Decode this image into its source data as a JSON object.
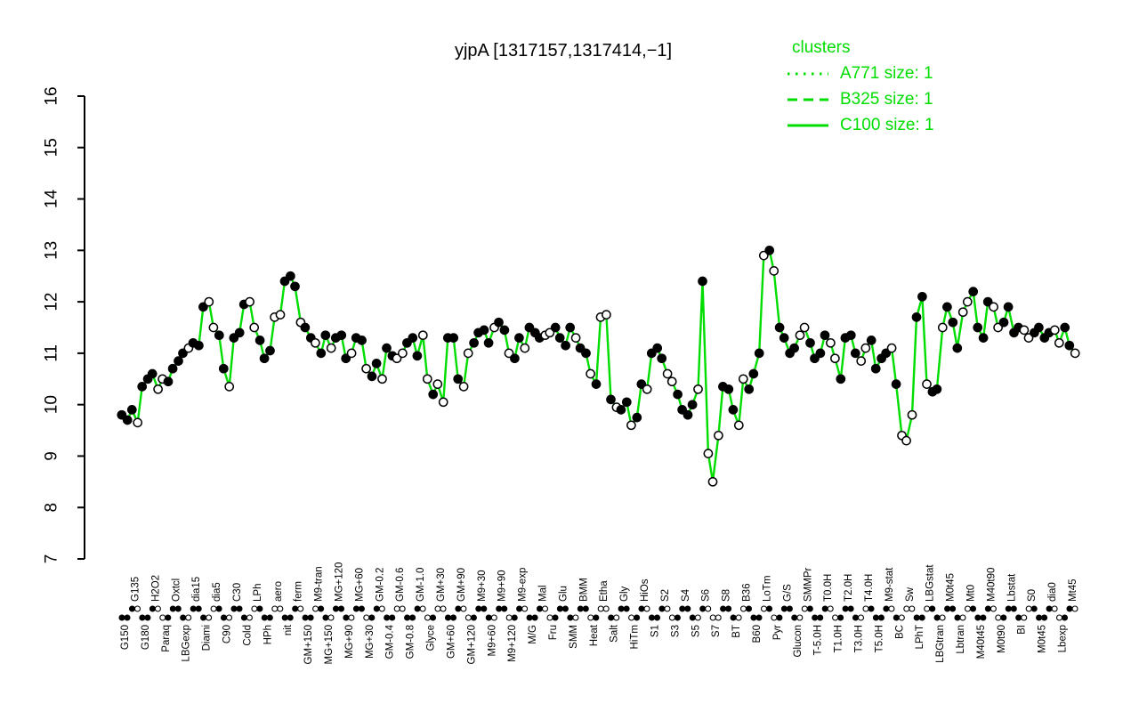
{
  "title": "yjpA [1317157,1317414,−1]",
  "legend": {
    "title": "clusters",
    "items": [
      {
        "label": "A771 size: 1",
        "line_style": "dotted"
      },
      {
        "label": "B325 size: 1",
        "line_style": "dashed"
      },
      {
        "label": "C100 size: 1",
        "line_style": "solid"
      }
    ]
  },
  "colors": {
    "accent": "#00dd00",
    "line": "#00dd00",
    "point_filled": "#000000",
    "point_open": "#ffffff",
    "axis": "#000000"
  },
  "chart_data": {
    "type": "line",
    "title": "yjpA [1317157,1317414,−1]",
    "xlabel": "",
    "ylabel": "",
    "ylim": [
      7,
      16
    ],
    "yticks": [
      7,
      8,
      9,
      10,
      11,
      12,
      13,
      14,
      15,
      16
    ],
    "grid": false,
    "legend_position": "top-right",
    "series_note": "two replicate points per condition; marker string: f=filled, o=open",
    "conditions": [
      [
        "G150",
        9.8,
        9.7,
        "ff"
      ],
      [
        "G135",
        9.9,
        9.65,
        "fo"
      ],
      [
        "G180",
        10.35,
        10.5,
        "ff"
      ],
      [
        "H2O2",
        10.6,
        10.3,
        "fo"
      ],
      [
        "Paraq",
        10.5,
        10.45,
        "of"
      ],
      [
        "Oxtcl",
        10.7,
        10.85,
        "ff"
      ],
      [
        "LBGexp",
        11.0,
        11.1,
        "fo"
      ],
      [
        "dia15",
        11.2,
        11.15,
        "ff"
      ],
      [
        "Diami",
        11.9,
        12.0,
        "fo"
      ],
      [
        "dia5",
        11.5,
        11.35,
        "of"
      ],
      [
        "C90",
        10.7,
        10.35,
        "fo"
      ],
      [
        "C30",
        11.3,
        11.4,
        "ff"
      ],
      [
        "Cold",
        11.95,
        12.0,
        "fo"
      ],
      [
        "LPh",
        11.5,
        11.25,
        "of"
      ],
      [
        "HPh",
        10.9,
        11.05,
        "ff"
      ],
      [
        "aero",
        11.7,
        11.75,
        "oo"
      ],
      [
        "nit",
        12.4,
        12.5,
        "ff"
      ],
      [
        "ferm",
        12.3,
        11.6,
        "fo"
      ],
      [
        "GM+150",
        11.5,
        11.3,
        "ff"
      ],
      [
        "M9-tran",
        11.2,
        11.0,
        "of"
      ],
      [
        "MG+150",
        11.35,
        11.1,
        "fo"
      ],
      [
        "MG+120",
        11.3,
        11.35,
        "ff"
      ],
      [
        "MG+90",
        10.9,
        11.0,
        "fo"
      ],
      [
        "MG+60",
        11.3,
        11.25,
        "ff"
      ],
      [
        "MG+30",
        10.7,
        10.55,
        "of"
      ],
      [
        "GM-0.2",
        10.8,
        10.5,
        "fo"
      ],
      [
        "GM-0.4",
        11.1,
        10.95,
        "ff"
      ],
      [
        "GM-0.6",
        10.9,
        11.0,
        "oo"
      ],
      [
        "GM-0.8",
        11.2,
        11.3,
        "ff"
      ],
      [
        "GM-1.0",
        10.95,
        11.35,
        "fo"
      ],
      [
        "Glyce",
        10.5,
        10.2,
        "of"
      ],
      [
        "GM+30",
        10.4,
        10.05,
        "oo"
      ],
      [
        "GM+60",
        11.3,
        11.3,
        "ff"
      ],
      [
        "GM+90",
        10.5,
        10.35,
        "fo"
      ],
      [
        "GM+120",
        11.0,
        11.2,
        "of"
      ],
      [
        "M9+30",
        11.4,
        11.45,
        "ff"
      ],
      [
        "M9+60",
        11.2,
        11.5,
        "fo"
      ],
      [
        "M9+90",
        11.6,
        11.45,
        "ff"
      ],
      [
        "M9+120",
        11.0,
        10.9,
        "of"
      ],
      [
        "M9-exp",
        11.3,
        11.1,
        "fo"
      ],
      [
        "M/G",
        11.5,
        11.4,
        "ff"
      ],
      [
        "Mal",
        11.3,
        11.35,
        "fo"
      ],
      [
        "Fru",
        11.4,
        11.5,
        "of"
      ],
      [
        "Glu",
        11.3,
        11.15,
        "ff"
      ],
      [
        "SMM",
        11.5,
        11.3,
        "fo"
      ],
      [
        "BMM",
        11.1,
        11.0,
        "ff"
      ],
      [
        "Heat",
        10.6,
        10.4,
        "of"
      ],
      [
        "Etha",
        11.7,
        11.75,
        "oo"
      ],
      [
        "Salt",
        10.1,
        9.95,
        "fo"
      ],
      [
        "Gly",
        9.9,
        10.05,
        "ff"
      ],
      [
        "HiTm",
        9.6,
        9.75,
        "of"
      ],
      [
        "HiOs",
        10.4,
        10.3,
        "fo"
      ],
      [
        "S1",
        11.0,
        11.1,
        "ff"
      ],
      [
        "S2",
        10.9,
        10.6,
        "fo"
      ],
      [
        "S3",
        10.45,
        10.2,
        "of"
      ],
      [
        "S4",
        9.9,
        9.8,
        "ff"
      ],
      [
        "S5",
        10.0,
        10.3,
        "fo"
      ],
      [
        "S6",
        12.4,
        9.05,
        "fo"
      ],
      [
        "S7",
        8.5,
        9.4,
        "oo"
      ],
      [
        "S8",
        10.35,
        10.3,
        "ff"
      ],
      [
        "BT",
        9.9,
        9.6,
        "fo"
      ],
      [
        "B36",
        10.5,
        10.3,
        "of"
      ],
      [
        "B60",
        10.6,
        11.0,
        "ff"
      ],
      [
        "LoTm",
        12.9,
        13.0,
        "of"
      ],
      [
        "Pyr",
        12.6,
        11.5,
        "of"
      ],
      [
        "G/S",
        11.3,
        11.0,
        "ff"
      ],
      [
        "Glucon",
        11.1,
        11.35,
        "fo"
      ],
      [
        "SMMPr",
        11.5,
        11.2,
        "of"
      ],
      [
        "T-5.0H",
        10.9,
        11.0,
        "ff"
      ],
      [
        "T0.0H",
        11.35,
        11.2,
        "fo"
      ],
      [
        "T1.0H",
        10.9,
        10.5,
        "of"
      ],
      [
        "T2.0H",
        11.3,
        11.35,
        "ff"
      ],
      [
        "T3.0H",
        11.0,
        10.85,
        "fo"
      ],
      [
        "T4.0H",
        11.1,
        11.25,
        "of"
      ],
      [
        "T5.0H",
        10.7,
        10.9,
        "ff"
      ],
      [
        "M9-stat",
        11.0,
        11.1,
        "fo"
      ],
      [
        "BC",
        10.4,
        9.4,
        "fo"
      ],
      [
        "Sw",
        9.3,
        9.8,
        "oo"
      ],
      [
        "LPhT",
        11.7,
        12.1,
        "ff"
      ],
      [
        "LBGstat",
        10.4,
        10.25,
        "of"
      ],
      [
        "LBGtran",
        10.3,
        11.5,
        "fo"
      ],
      [
        "M0t45",
        11.9,
        11.6,
        "ff"
      ],
      [
        "Lbtran",
        11.1,
        11.8,
        "fo"
      ],
      [
        "Mt0",
        12.0,
        12.2,
        "of"
      ],
      [
        "M40t45",
        11.5,
        11.3,
        "ff"
      ],
      [
        "M40t90",
        12.0,
        11.9,
        "fo"
      ],
      [
        "M0t90",
        11.5,
        11.6,
        "of"
      ],
      [
        "Lbstat",
        11.9,
        11.4,
        "ff"
      ],
      [
        "BI",
        11.5,
        11.45,
        "fo"
      ],
      [
        "S0",
        11.3,
        11.4,
        "of"
      ],
      [
        "M0t45",
        11.5,
        11.3,
        "ff"
      ],
      [
        "dia0",
        11.4,
        11.45,
        "fo"
      ],
      [
        "Lbexp",
        11.2,
        11.5,
        "of"
      ],
      [
        "Mt45",
        11.15,
        11.0,
        "fo"
      ]
    ]
  }
}
